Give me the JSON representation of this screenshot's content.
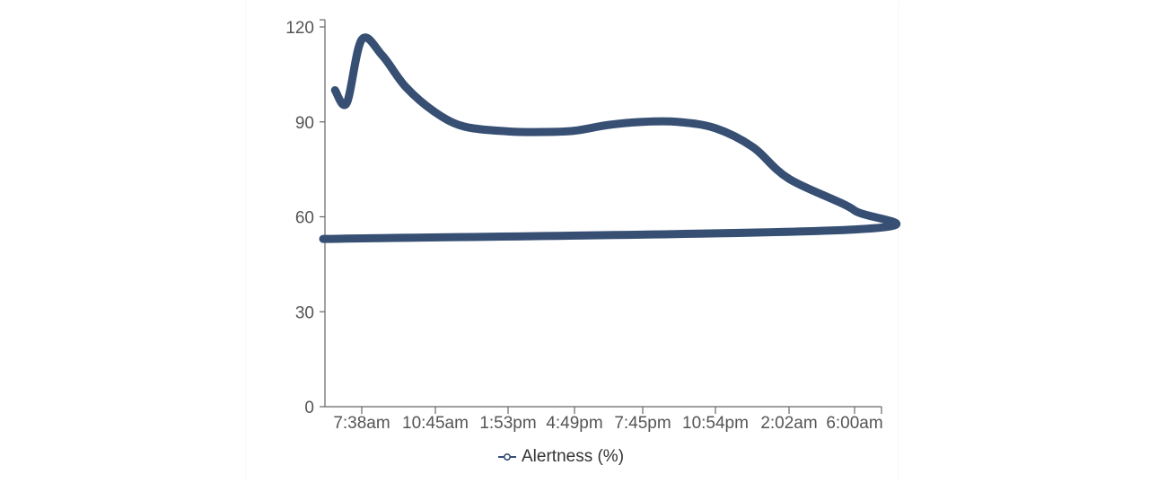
{
  "chart_data": {
    "type": "line",
    "x_ticks": [
      "7:38am",
      "10:45am",
      "1:53pm",
      "4:49pm",
      "7:45pm",
      "10:54pm",
      "2:02am",
      "6:00am"
    ],
    "y_ticks": [
      "0",
      "30",
      "60",
      "90",
      "120"
    ],
    "ylim": [
      0,
      120
    ],
    "grid": false,
    "legend_position": "bottom",
    "series": [
      {
        "name": "Alertness (%)",
        "color": "#364f73",
        "x": [
          "6:30am",
          "7:00am",
          "7:38am",
          "8:30am",
          "9:30am",
          "10:45am",
          "12:00pm",
          "1:53pm",
          "3:30pm",
          "4:49pm",
          "6:15pm",
          "7:45pm",
          "9:15pm",
          "10:54pm",
          "12:30am",
          "2:02am",
          "3:30am",
          "4:45am",
          "6:00am"
        ],
        "values": [
          100,
          96,
          116,
          111,
          101,
          93,
          88.5,
          87,
          86.8,
          87.2,
          89,
          90,
          90,
          88,
          82,
          72,
          62,
          56,
          53
        ]
      }
    ]
  }
}
